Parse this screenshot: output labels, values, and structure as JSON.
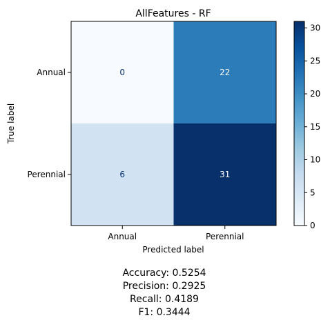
{
  "chart_data": {
    "type": "heatmap",
    "title": "AllFeatures - RF",
    "xlabel": "Predicted label",
    "ylabel": "True label",
    "x_categories": [
      "Annual",
      "Perennial"
    ],
    "y_categories": [
      "Annual",
      "Perennial"
    ],
    "values": [
      [
        0,
        22
      ],
      [
        6,
        31
      ]
    ],
    "colormap": "Blues",
    "colorbar": {
      "min": 0,
      "max": 31,
      "ticks": [
        0,
        5,
        10,
        15,
        20,
        25,
        30
      ]
    },
    "metrics": [
      "Accuracy: 0.5254",
      "Precision: 0.2925",
      "Recall: 0.4189",
      "F1: 0.3444"
    ]
  },
  "colors": {
    "ramp": [
      "#f7fbff",
      "#deebf7",
      "#c6dbef",
      "#9ecae1",
      "#6baed6",
      "#4292c6",
      "#2171b5",
      "#08519c",
      "#08306b"
    ],
    "text_light": "#ffffff",
    "text_dark": "#08306b"
  }
}
